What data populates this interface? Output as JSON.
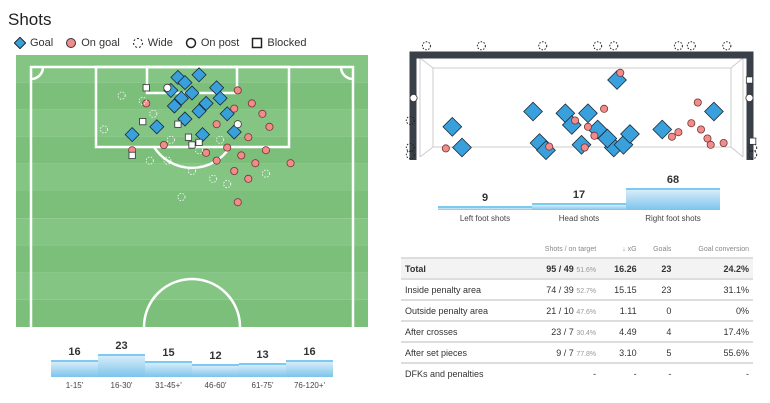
{
  "title": "Shots",
  "legend": [
    {
      "label": "Goal",
      "icon": "diamond"
    },
    {
      "label": "On goal",
      "icon": "circle-red"
    },
    {
      "label": "Wide",
      "icon": "dashed-circle"
    },
    {
      "label": "On post",
      "icon": "circle-white"
    },
    {
      "label": "Blocked",
      "icon": "square"
    }
  ],
  "colors": {
    "pitch": "#7bbf7b",
    "pitch_stripe": "#84c584",
    "goal": "#3aa0dc",
    "on_goal": "#f08c8c"
  },
  "chart_data": [
    {
      "type": "scatter",
      "name": "shot map",
      "x_units": "pitch width 0-100",
      "y_units": "distance from goal line 0-100 of half",
      "shots": [
        {
          "t": "goal",
          "x": 46,
          "y": 4
        },
        {
          "t": "goal",
          "x": 48,
          "y": 6
        },
        {
          "t": "goal",
          "x": 52,
          "y": 3
        },
        {
          "t": "goal",
          "x": 44,
          "y": 9
        },
        {
          "t": "goal",
          "x": 50,
          "y": 10
        },
        {
          "t": "goal",
          "x": 47,
          "y": 12
        },
        {
          "t": "goal",
          "x": 54,
          "y": 14
        },
        {
          "t": "goal",
          "x": 52,
          "y": 17
        },
        {
          "t": "goal",
          "x": 58,
          "y": 12
        },
        {
          "t": "goal",
          "x": 45,
          "y": 15
        },
        {
          "t": "goal",
          "x": 60,
          "y": 18
        },
        {
          "t": "goal",
          "x": 57,
          "y": 8
        },
        {
          "t": "goal",
          "x": 40,
          "y": 23
        },
        {
          "t": "goal",
          "x": 33,
          "y": 26
        },
        {
          "t": "goal",
          "x": 53,
          "y": 26
        },
        {
          "t": "goal",
          "x": 62,
          "y": 25
        },
        {
          "t": "goal",
          "x": 48,
          "y": 20
        },
        {
          "t": "on",
          "x": 63,
          "y": 9
        },
        {
          "t": "on",
          "x": 67,
          "y": 14
        },
        {
          "t": "on",
          "x": 62,
          "y": 16
        },
        {
          "t": "on",
          "x": 70,
          "y": 18
        },
        {
          "t": "on",
          "x": 72,
          "y": 23
        },
        {
          "t": "on",
          "x": 66,
          "y": 27
        },
        {
          "t": "on",
          "x": 60,
          "y": 31
        },
        {
          "t": "on",
          "x": 64,
          "y": 34
        },
        {
          "t": "on",
          "x": 68,
          "y": 37
        },
        {
          "t": "on",
          "x": 62,
          "y": 40
        },
        {
          "t": "on",
          "x": 66,
          "y": 43
        },
        {
          "t": "on",
          "x": 71,
          "y": 32
        },
        {
          "t": "on",
          "x": 57,
          "y": 36
        },
        {
          "t": "on",
          "x": 54,
          "y": 33
        },
        {
          "t": "on",
          "x": 42,
          "y": 30
        },
        {
          "t": "on",
          "x": 33,
          "y": 32
        },
        {
          "t": "on",
          "x": 37,
          "y": 14
        },
        {
          "t": "on",
          "x": 57,
          "y": 22
        },
        {
          "t": "on",
          "x": 63,
          "y": 52
        },
        {
          "t": "on",
          "x": 78,
          "y": 37
        },
        {
          "t": "wide",
          "x": 30,
          "y": 11
        },
        {
          "t": "wide",
          "x": 36,
          "y": 13
        },
        {
          "t": "wide",
          "x": 39,
          "y": 18
        },
        {
          "t": "wide",
          "x": 25,
          "y": 24
        },
        {
          "t": "wide",
          "x": 38,
          "y": 36
        },
        {
          "t": "wide",
          "x": 43,
          "y": 36
        },
        {
          "t": "wide",
          "x": 50,
          "y": 40
        },
        {
          "t": "wide",
          "x": 56,
          "y": 43
        },
        {
          "t": "wide",
          "x": 47,
          "y": 50
        },
        {
          "t": "wide",
          "x": 52,
          "y": 32
        },
        {
          "t": "wide",
          "x": 60,
          "y": 45
        },
        {
          "t": "wide",
          "x": 71,
          "y": 41
        },
        {
          "t": "wide",
          "x": 44,
          "y": 28
        },
        {
          "t": "wide",
          "x": 58,
          "y": 28
        },
        {
          "t": "post",
          "x": 43,
          "y": 8
        },
        {
          "t": "post",
          "x": 63,
          "y": 22
        },
        {
          "t": "blocked",
          "x": 49,
          "y": 27
        },
        {
          "t": "blocked",
          "x": 50,
          "y": 30
        },
        {
          "t": "blocked",
          "x": 52,
          "y": 29
        },
        {
          "t": "blocked",
          "x": 36,
          "y": 21
        },
        {
          "t": "blocked",
          "x": 46,
          "y": 22
        },
        {
          "t": "blocked",
          "x": 33,
          "y": 34
        },
        {
          "t": "blocked",
          "x": 37,
          "y": 8
        }
      ]
    },
    {
      "type": "scatter",
      "name": "goal mouth",
      "x_units": "goal width 0-100 (outside <0 or >100)",
      "y_units": "height 0-100 of crossbar",
      "shots": [
        {
          "t": "goal",
          "x": 61,
          "y": 80
        },
        {
          "t": "goal",
          "x": 91,
          "y": 45
        },
        {
          "t": "goal",
          "x": 35,
          "y": 45
        },
        {
          "t": "goal",
          "x": 45,
          "y": 43
        },
        {
          "t": "goal",
          "x": 52,
          "y": 43
        },
        {
          "t": "goal",
          "x": 37,
          "y": 10
        },
        {
          "t": "goal",
          "x": 50,
          "y": 8
        },
        {
          "t": "goal",
          "x": 60,
          "y": 5
        },
        {
          "t": "goal",
          "x": 63,
          "y": 8
        },
        {
          "t": "goal",
          "x": 10,
          "y": 28
        },
        {
          "t": "goal",
          "x": 13,
          "y": 5
        },
        {
          "t": "goal",
          "x": 39,
          "y": 2
        },
        {
          "t": "goal",
          "x": 58,
          "y": 15
        },
        {
          "t": "goal",
          "x": 55,
          "y": 25
        },
        {
          "t": "goal",
          "x": 65,
          "y": 20
        },
        {
          "t": "goal",
          "x": 75,
          "y": 25
        },
        {
          "t": "goal",
          "x": 47,
          "y": 30
        },
        {
          "t": "on",
          "x": 62,
          "y": 88
        },
        {
          "t": "on",
          "x": 86,
          "y": 55
        },
        {
          "t": "on",
          "x": 57,
          "y": 48
        },
        {
          "t": "on",
          "x": 48,
          "y": 35
        },
        {
          "t": "on",
          "x": 52,
          "y": 28
        },
        {
          "t": "on",
          "x": 54,
          "y": 18
        },
        {
          "t": "on",
          "x": 84,
          "y": 32
        },
        {
          "t": "on",
          "x": 87,
          "y": 25
        },
        {
          "t": "on",
          "x": 89,
          "y": 15
        },
        {
          "t": "on",
          "x": 78,
          "y": 17
        },
        {
          "t": "on",
          "x": 80,
          "y": 22
        },
        {
          "t": "on",
          "x": 90,
          "y": 8
        },
        {
          "t": "on",
          "x": 94,
          "y": 10
        },
        {
          "t": "on",
          "x": 40,
          "y": 6
        },
        {
          "t": "on",
          "x": 8,
          "y": 4
        },
        {
          "t": "on",
          "x": 51,
          "y": 5
        },
        {
          "t": "wide",
          "x": 2,
          "y": 118
        },
        {
          "t": "wide",
          "x": 19,
          "y": 118
        },
        {
          "t": "wide",
          "x": 38,
          "y": 118
        },
        {
          "t": "wide",
          "x": 55,
          "y": 118
        },
        {
          "t": "wide",
          "x": 60,
          "y": 118
        },
        {
          "t": "wide",
          "x": 80,
          "y": 118
        },
        {
          "t": "wide",
          "x": 84,
          "y": 118
        },
        {
          "t": "wide",
          "x": 95,
          "y": 118
        },
        {
          "t": "wide",
          "x": -3,
          "y": 35
        },
        {
          "t": "wide",
          "x": -3,
          "y": 5
        },
        {
          "t": "wide",
          "x": -3,
          "y": -3
        },
        {
          "t": "wide",
          "x": 103,
          "y": 5
        },
        {
          "t": "wide",
          "x": 103,
          "y": -3
        },
        {
          "t": "post",
          "x": -2,
          "y": 60
        },
        {
          "t": "post",
          "x": 102,
          "y": 60
        },
        {
          "t": "blocked",
          "x": 102,
          "y": 80
        },
        {
          "t": "blocked",
          "x": 103,
          "y": 12
        }
      ]
    },
    {
      "type": "bar",
      "name": "shots by body part",
      "categories": [
        "Left foot shots",
        "Head shots",
        "Right foot shots"
      ],
      "values": [
        9,
        17,
        68
      ]
    },
    {
      "type": "bar",
      "name": "shots by period",
      "categories": [
        "1-15'",
        "16-30'",
        "31-45+'",
        "46-60'",
        "61-75'",
        "76-120+'"
      ],
      "values": [
        16,
        23,
        15,
        12,
        13,
        16
      ]
    }
  ],
  "table": {
    "headers": [
      "",
      "Shots / on target",
      "↓ xG",
      "Goals",
      "Goal conversion"
    ],
    "rows": [
      {
        "label": "Total",
        "shots": "95 / 49",
        "pct": "51.6%",
        "xg": "16.26",
        "goals": "23",
        "conv": "24.2%"
      },
      {
        "label": "Inside penalty area",
        "shots": "74 / 39",
        "pct": "52.7%",
        "xg": "15.15",
        "goals": "23",
        "conv": "31.1%"
      },
      {
        "label": "Outside penalty area",
        "shots": "21 / 10",
        "pct": "47.6%",
        "xg": "1.11",
        "goals": "0",
        "conv": "0%"
      },
      {
        "label": "After crosses",
        "shots": "23 / 7",
        "pct": "30.4%",
        "xg": "4.49",
        "goals": "4",
        "conv": "17.4%"
      },
      {
        "label": "After set pieces",
        "shots": "9 / 7",
        "pct": "77.8%",
        "xg": "3.10",
        "goals": "5",
        "conv": "55.6%"
      },
      {
        "label": "DFKs and penalties",
        "shots": "-",
        "pct": "",
        "xg": "-",
        "goals": "-",
        "conv": "-"
      }
    ]
  }
}
